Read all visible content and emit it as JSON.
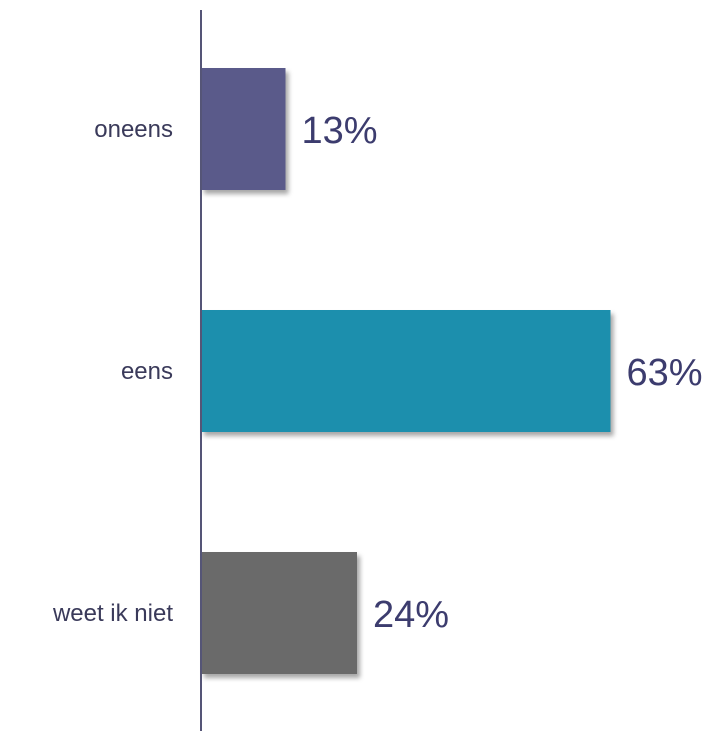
{
  "chart_data": {
    "type": "bar",
    "orientation": "horizontal",
    "categories": [
      "oneens",
      "eens",
      "weet ik niet"
    ],
    "values": [
      13,
      63,
      24
    ],
    "value_labels": [
      "13%",
      "63%",
      "24%"
    ],
    "colors": [
      "#5a5a8a",
      "#1f8fad",
      "#6b6b6b"
    ],
    "xlim": [
      0,
      100
    ],
    "unit": "%",
    "grid": false,
    "legend": "none",
    "axis_color": "#555577"
  }
}
